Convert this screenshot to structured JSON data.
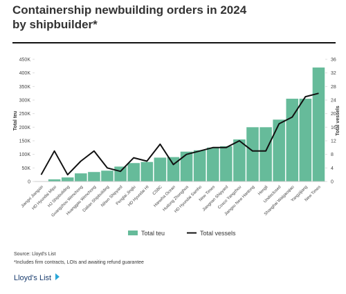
{
  "chart_data": {
    "type": "bar_line",
    "title": "Containership newbuilding orders in 2024 by shipbuilder*",
    "y_label": "Total teu",
    "y2_label": "Total vessels",
    "categories": [
      "Jiangxi Jiangxin",
      "HD Hyundai Mipo",
      "HJ Shipbuilding",
      "Guangzhou Wenchong",
      "Huanggao Wenchong",
      "Dalian Shipbuilding",
      "Nihon Shipyard",
      "Penglai Jinglu",
      "HD Hyundai HI",
      "CSBC",
      "Hanwha Ocean",
      "Hudong Zhonghua",
      "HD Hyundai Samho",
      "New Times",
      "Jiangnan Shipyard",
      "Cosco Yangzhou",
      "Jiangsu New Hantong",
      "Hengli",
      "Undisclosed",
      "Shanghai Waigaoqiao",
      "Yangzijiang",
      "New Times"
    ],
    "series": [
      {
        "name": "Total teu",
        "color": "#66bb9a",
        "type": "bar",
        "values": [
          1000,
          8000,
          15000,
          30000,
          35000,
          40000,
          55000,
          68000,
          72000,
          88000,
          90000,
          110000,
          115000,
          125000,
          130000,
          155000,
          200000,
          200000,
          228000,
          305000,
          305000,
          420000
        ]
      },
      {
        "name": "Total vessels",
        "color": "#111111",
        "type": "line",
        "axis": "y2",
        "values": [
          2,
          9,
          2,
          6,
          9,
          4,
          3,
          7,
          6,
          11,
          5,
          8,
          9,
          10,
          10,
          12,
          9,
          9,
          17,
          19,
          25,
          26
        ]
      }
    ],
    "ylim": [
      0,
      450000
    ],
    "yticks": [
      0,
      {
        "value": 50000,
        "label": "50K"
      },
      {
        "value": 100000,
        "label": "100K"
      },
      {
        "value": 150000,
        "label": "150K"
      },
      {
        "value": 200000,
        "label": "200K"
      },
      {
        "value": 250000,
        "label": "250K"
      },
      {
        "value": 300000,
        "label": "300K"
      },
      {
        "value": 350000,
        "label": "350K"
      },
      {
        "value": 400000,
        "label": "400K"
      },
      {
        "value": 450000,
        "label": "450K"
      }
    ],
    "y2lim": [
      0,
      36
    ],
    "y2ticks": [
      0,
      4,
      8,
      12,
      16,
      20,
      24,
      28,
      32,
      36
    ],
    "legend": "bottom",
    "source": "Source: Lloyd's List",
    "footnote": "*Includes firm contracts, LOIs and awaiting refund guarantee",
    "brand": "Lloyd's List"
  }
}
